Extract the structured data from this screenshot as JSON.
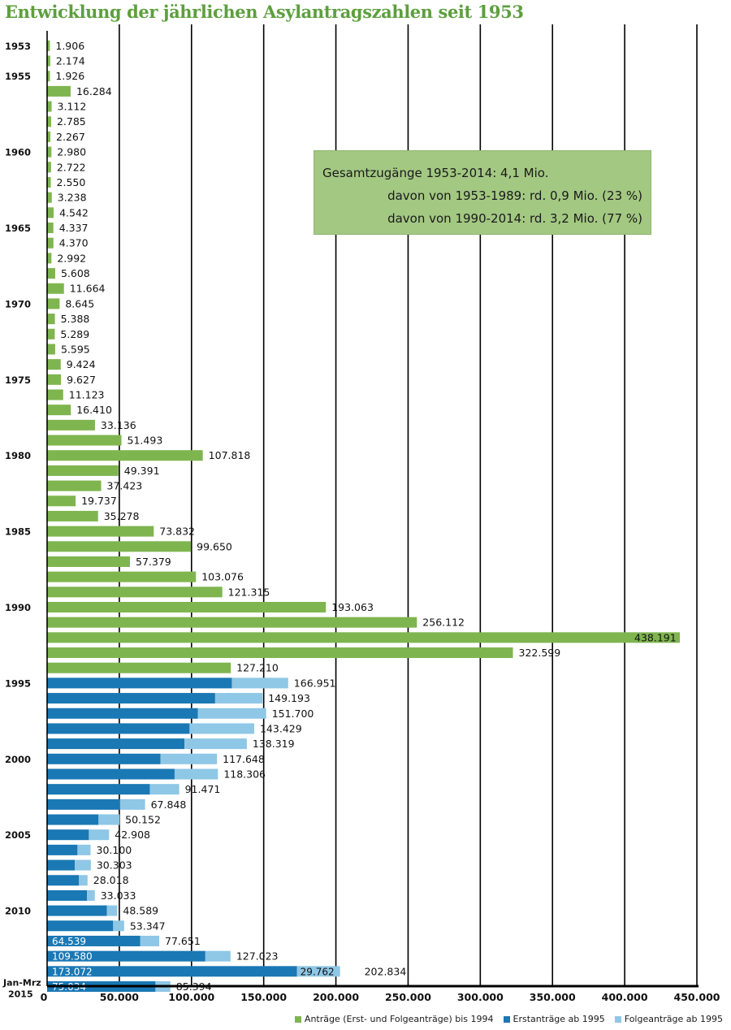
{
  "title": "Entwicklung der jährlichen Asylantragszahlen seit 1953",
  "info_box": {
    "line1": "Gesamtzugänge 1953-2014:      4,1  Mio.",
    "line2": "davon von 1953-1989: rd. 0,9  Mio. (23 %)",
    "line3": "davon von 1990-2014: rd. 3,2  Mio. (77 %)"
  },
  "chart_data": {
    "type": "bar",
    "orientation": "horizontal",
    "stacked": true,
    "title": "Entwicklung der jährlichen Asylantragszahlen seit 1953",
    "xlim": [
      0,
      450000
    ],
    "x_ticks": [
      "0",
      "50.000",
      "100.000",
      "150.000",
      "200.000",
      "250.000",
      "300.000",
      "350.000",
      "400.000",
      "450.000"
    ],
    "grid": "vertical",
    "legend_position": "bottom-right",
    "category_labels": {
      "1953": "1953",
      "1955": "1955",
      "1960": "1960",
      "1965": "1965",
      "1970": "1970",
      "1975": "1975",
      "1980": "1980",
      "1985": "1985",
      "1990": "1990",
      "1995": "1995",
      "2000": "2000",
      "2005": "2005",
      "2010": "2010",
      "2015": "Jan-Mrz 2015"
    },
    "series": [
      {
        "name": "Anträge (Erst- und Folgeanträge) bis 1994",
        "color": "#7fb54f"
      },
      {
        "name": "Erstanträge ab 1995",
        "color": "#1a78b4"
      },
      {
        "name": "Folgeanträge ab 1995",
        "color": "#8fc7e6"
      }
    ],
    "rows": [
      {
        "year": 1953,
        "total": 1906,
        "label": "1.906"
      },
      {
        "year": 1954,
        "total": 2174,
        "label": "2.174"
      },
      {
        "year": 1955,
        "total": 1926,
        "label": "1.926"
      },
      {
        "year": 1956,
        "total": 16284,
        "label": "16.284"
      },
      {
        "year": 1957,
        "total": 3112,
        "label": "3.112"
      },
      {
        "year": 1958,
        "total": 2785,
        "label": "2.785"
      },
      {
        "year": 1959,
        "total": 2267,
        "label": "2.267"
      },
      {
        "year": 1960,
        "total": 2980,
        "label": "2.980"
      },
      {
        "year": 1961,
        "total": 2722,
        "label": "2.722"
      },
      {
        "year": 1962,
        "total": 2550,
        "label": "2.550"
      },
      {
        "year": 1963,
        "total": 3238,
        "label": "3.238"
      },
      {
        "year": 1964,
        "total": 4542,
        "label": "4.542"
      },
      {
        "year": 1965,
        "total": 4337,
        "label": "4.337"
      },
      {
        "year": 1966,
        "total": 4370,
        "label": "4.370"
      },
      {
        "year": 1967,
        "total": 2992,
        "label": "2.992"
      },
      {
        "year": 1968,
        "total": 5608,
        "label": "5.608"
      },
      {
        "year": 1969,
        "total": 11664,
        "label": "11.664"
      },
      {
        "year": 1970,
        "total": 8645,
        "label": "8.645"
      },
      {
        "year": 1971,
        "total": 5388,
        "label": "5.388"
      },
      {
        "year": 1972,
        "total": 5289,
        "label": "5.289"
      },
      {
        "year": 1973,
        "total": 5595,
        "label": "5.595"
      },
      {
        "year": 1974,
        "total": 9424,
        "label": "9.424"
      },
      {
        "year": 1975,
        "total": 9627,
        "label": "9.627"
      },
      {
        "year": 1976,
        "total": 11123,
        "label": "11.123"
      },
      {
        "year": 1977,
        "total": 16410,
        "label": "16.410"
      },
      {
        "year": 1978,
        "total": 33136,
        "label": "33.136"
      },
      {
        "year": 1979,
        "total": 51493,
        "label": "51.493"
      },
      {
        "year": 1980,
        "total": 107818,
        "label": "107.818"
      },
      {
        "year": 1981,
        "total": 49391,
        "label": "49.391"
      },
      {
        "year": 1982,
        "total": 37423,
        "label": "37.423"
      },
      {
        "year": 1983,
        "total": 19737,
        "label": "19.737"
      },
      {
        "year": 1984,
        "total": 35278,
        "label": "35.278"
      },
      {
        "year": 1985,
        "total": 73832,
        "label": "73.832"
      },
      {
        "year": 1986,
        "total": 99650,
        "label": "99.650"
      },
      {
        "year": 1987,
        "total": 57379,
        "label": "57.379"
      },
      {
        "year": 1988,
        "total": 103076,
        "label": "103.076"
      },
      {
        "year": 1989,
        "total": 121315,
        "label": "121.315"
      },
      {
        "year": 1990,
        "total": 193063,
        "label": "193.063"
      },
      {
        "year": 1991,
        "total": 256112,
        "label": "256.112"
      },
      {
        "year": 1992,
        "total": 438191,
        "label": "438.191"
      },
      {
        "year": 1993,
        "total": 322599,
        "label": "322.599"
      },
      {
        "year": 1994,
        "total": 127210,
        "label": "127.210"
      },
      {
        "year": 1995,
        "first": 127937,
        "total": 166951,
        "label": "166.951"
      },
      {
        "year": 1996,
        "first": 116367,
        "total": 149193,
        "label": "149.193"
      },
      {
        "year": 1997,
        "first": 104353,
        "total": 151700,
        "label": "151.700"
      },
      {
        "year": 1998,
        "first": 98644,
        "total": 143429,
        "label": "143.429"
      },
      {
        "year": 1999,
        "first": 95113,
        "total": 138319,
        "label": "138.319"
      },
      {
        "year": 2000,
        "first": 78564,
        "total": 117648,
        "label": "117.648"
      },
      {
        "year": 2001,
        "first": 88287,
        "total": 118306,
        "label": "118.306"
      },
      {
        "year": 2002,
        "first": 71127,
        "total": 91471,
        "label": "91.471"
      },
      {
        "year": 2003,
        "first": 50563,
        "total": 67848,
        "label": "67.848"
      },
      {
        "year": 2004,
        "first": 35607,
        "total": 50152,
        "label": "50.152"
      },
      {
        "year": 2005,
        "first": 28914,
        "total": 42908,
        "label": "42.908"
      },
      {
        "year": 2006,
        "first": 21029,
        "total": 30100,
        "label": "30.100"
      },
      {
        "year": 2007,
        "first": 19164,
        "total": 30303,
        "label": "30.303"
      },
      {
        "year": 2008,
        "first": 22085,
        "total": 28018,
        "label": "28.018"
      },
      {
        "year": 2009,
        "first": 27649,
        "total": 33033,
        "label": "33.033"
      },
      {
        "year": 2010,
        "first": 41332,
        "total": 48589,
        "label": "48.589"
      },
      {
        "year": 2011,
        "first": 45741,
        "total": 53347,
        "label": "53.347"
      },
      {
        "year": 2012,
        "first": 64539,
        "total": 77651,
        "label": "77.651",
        "first_label": "64.539"
      },
      {
        "year": 2013,
        "first": 109580,
        "total": 127023,
        "label": "127.023",
        "first_label": "109.580"
      },
      {
        "year": 2014,
        "first": 173072,
        "total": 202834,
        "label": "202.834",
        "first_label": "173.072",
        "second_label": "29.762"
      },
      {
        "year": 2015,
        "first": 75034,
        "total": 85394,
        "label": "85.394",
        "first_label": "75.034"
      }
    ]
  }
}
